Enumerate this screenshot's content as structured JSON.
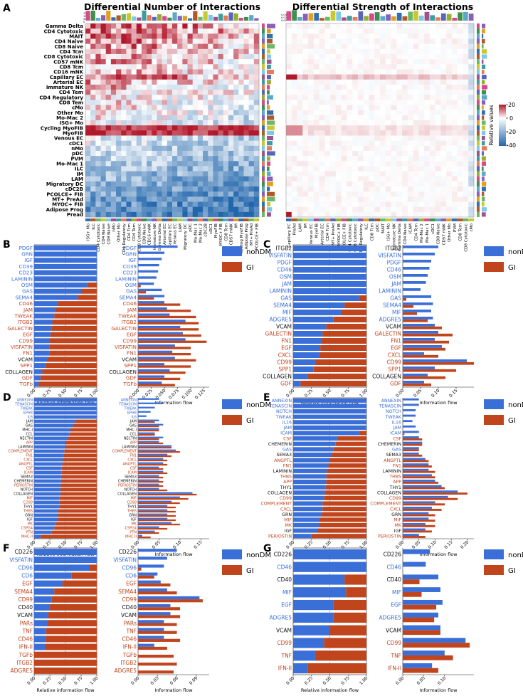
{
  "panel_letters": [
    "A",
    "B",
    "C",
    "D",
    "E",
    "F",
    "G"
  ],
  "heatmap": {
    "title_left": "Differential Number of Interactions",
    "title_right": "Differential Strength of Interactions",
    "small_scale_labels_left": [
      "150",
      "100",
      "50",
      "0"
    ],
    "small_scale_labels_right": [
      "0.04",
      "0.02",
      "0.00"
    ],
    "colorbar_ticks": [
      "20",
      "0",
      "-20",
      "-40"
    ],
    "colorbar_label": "Relative values",
    "colors": {
      "pos": "#b2182b",
      "neg": "#2166ac",
      "mid": "#ffffff"
    }
  },
  "chart_data": [
    {
      "type": "heatmap",
      "title": "Differential Number of Interactions",
      "rows": [
        "Gamma Delta",
        "CD4 Cytotoxic",
        "MAIT",
        "CD4 Naive",
        "CD8 Naive",
        "CD4 Tcm",
        "CD8 Cytotoxic",
        "CD57 mNK",
        "CD8 Tcm",
        "CD16 mNK",
        "Capillary EC",
        "Arterial EC",
        "Immature NK",
        "CD4 Tem",
        "CD4 Regulatory",
        "CD8 Tem",
        "cMo",
        "Other Mo",
        "Mo-Mac 2",
        "ISG+ Mo",
        "Cycling MyoFIB",
        "MyoFIB",
        "Venous EC",
        "cDC1",
        "nMo",
        "pDC",
        "PVM",
        "Mo-Mac 1",
        "ILC",
        "IM",
        "LAM",
        "Migratory DC",
        "cDC2B",
        "PCOLCE+ FIB",
        "MT+ PreAd",
        "MYOC+ FIB",
        "Adipose Prog",
        "Pread"
      ],
      "columns": [
        "ISG+ Mo",
        "ILC",
        "CD4 Cytotoxic",
        "CD4 Naive",
        "CD8 Naive",
        "nMo",
        "Other Mo",
        "CD4 Regulatory",
        "CD4 Tcm",
        "CD4 Tem",
        "CD8 Cytotoxic",
        "CD8 Naive",
        "CD16 mNK",
        "Immature NK",
        "Gamma Delta",
        "Arterial EC",
        "Capillary EC",
        "Venous EC",
        "LAM",
        "Migratory DC",
        "pDC",
        "Mo-Mac 1",
        "Mo-Mac 2",
        "cDC2B",
        "cDC1",
        "MyoFIB",
        "MYOC+ FIB",
        "CD8 Tem",
        "CD57 mNK",
        "IM",
        "Cycling MyoFIB",
        "Adipose Prog",
        "MT+ PreAd",
        "PCOLCE+ FIB"
      ],
      "color_range": [
        -40,
        20
      ],
      "colorbar_label": "Relative values"
    },
    {
      "type": "heatmap",
      "title": "Differential Strength of Interactions",
      "rows": [
        "Gamma Delta",
        "CD4 Cytotoxic",
        "MAIT",
        "CD4 Naive",
        "CD8 Naive",
        "CD4 Tcm",
        "CD8 Cytotoxic",
        "CD57 mNK",
        "CD8 Tcm",
        "CD16 mNK",
        "Capillary EC",
        "Arterial EC",
        "Immature NK",
        "CD4 Tem",
        "CD4 Regulatory",
        "CD8 Tem",
        "cMo",
        "Other Mo",
        "Mo-Mac 2",
        "ISG+ Mo",
        "Cycling MyoFIB",
        "MyoFIB",
        "Venous EC",
        "cDC1",
        "nMo",
        "pDC",
        "PVM",
        "Mo-Mac 1",
        "ILC",
        "IM",
        "LAM",
        "Migratory DC",
        "cDC2B",
        "PCOLCE+ FIB",
        "MT+ PreAd",
        "MYOC+ FIB",
        "Adipose Prog",
        "Pread"
      ],
      "columns": [
        "Capillary EC",
        "PreAd",
        "LAM",
        "IM",
        "Venous EC",
        "MyoFIB",
        "Arterial EC",
        "CD4 Tcm",
        "MT+ PreAd",
        "MYOC+ FIB",
        "PCOLCE+ FIB",
        "CD4 Cytotoxic",
        "CD8 Cytotoxic",
        "CD4 Regulatory",
        "ILC",
        "CD8 Tcm",
        "pDC",
        "MAIT",
        "ISG+ Mo",
        "Immature NK",
        "Gamma Delta",
        "CD4 Naive",
        "ICAM",
        "CD4 Tem",
        "Mo-Mac 2",
        "Mo-Mac 1",
        "cDC1",
        "CD8 Naive",
        "CD57 mNK",
        "Other Mo",
        "PVM",
        "CD8 Tem",
        "CD8 Cytotoxic",
        "cMo"
      ],
      "color_range": [
        -40,
        20
      ],
      "colorbar_label": "Relative values"
    },
    {
      "panel": "B",
      "type": "bar",
      "categories": [
        "PDGF",
        "GRN",
        "IGF",
        "CD39",
        "CD23",
        "LAMININ",
        "OSM",
        "GAS",
        "SEMA4",
        "CD46",
        "JAM",
        "TWEAK",
        "ITGB2",
        "GALECTIN",
        "EGF",
        "CD99",
        "VISFATIN",
        "FN1",
        "VCAM",
        "SPP1",
        "COLLAGEN",
        "GDF",
        "TGFb"
      ],
      "label_groups": [
        "nonDM",
        "nonDM",
        "nonDM",
        "nonDM",
        "nonDM",
        "nonDM",
        "nonDM",
        "nonDM",
        "nonDM",
        "GI",
        "GI",
        "GI",
        "GI",
        "GI",
        "GI",
        "GI",
        "GI",
        "GI",
        "none",
        "GI",
        "none",
        "GI",
        "GI"
      ],
      "relative_gi": [
        0,
        0,
        0,
        0,
        0,
        0,
        0.15,
        0.25,
        0.3,
        0.62,
        0.66,
        0.68,
        0.71,
        0.72,
        0.74,
        0.75,
        0.76,
        0.76,
        0.79,
        0.82,
        0.87,
        0.9,
        0.93
      ],
      "abs_nondm": [
        0.075,
        0.05,
        0.045,
        0.04,
        0.038,
        0.035,
        0.03,
        0.045,
        0.05,
        0.05,
        0.055,
        0.06,
        0.09,
        0.08,
        0.085,
        0.09,
        0.07,
        0.065,
        0.07,
        0.05,
        0.06,
        0.05,
        0.045
      ],
      "abs_gi": [
        0,
        0,
        0,
        0,
        0,
        0,
        0.005,
        0.015,
        0.03,
        0.08,
        0.1,
        0.11,
        0.115,
        0.115,
        0.12,
        0.13,
        0.1,
        0.1,
        0.11,
        0.1,
        0.09,
        0.08,
        0.07
      ],
      "xticks_rel": [
        "0.00",
        "0.25",
        "0.50",
        "0.75",
        "1.00"
      ],
      "xticks_abs": [
        "0.000",
        "0.025",
        "0.050",
        "0.075",
        "0.100",
        "0.125"
      ],
      "xmax_abs": 0.135,
      "xlabel_rel": "Relative information flow",
      "xlabel_abs": "Information flow",
      "legend": [
        "nonDM",
        "GI"
      ]
    },
    {
      "panel": "C",
      "type": "bar",
      "categories": [
        "ITGB2",
        "VISFATIN",
        "PDGF",
        "CD46",
        "OSM",
        "JAM",
        "LAMININ",
        "GAS",
        "SEMA4",
        "MIF",
        "ADGRE5",
        "VCAM",
        "GALECTIN",
        "FN1",
        "EGF",
        "CXCL",
        "CD99",
        "SPP1",
        "COLLAGEN",
        "GDF"
      ],
      "label_groups": [
        "none",
        "nonDM",
        "nonDM",
        "nonDM",
        "nonDM",
        "nonDM",
        "nonDM",
        "nonDM",
        "nonDM",
        "nonDM",
        "nonDM",
        "none",
        "GI",
        "GI",
        "GI",
        "GI",
        "GI",
        "GI",
        "none",
        "GI"
      ],
      "relative_gi": [
        0,
        0,
        0,
        0,
        0,
        0,
        0,
        0.1,
        0.3,
        0.35,
        0.45,
        0.55,
        0.6,
        0.62,
        0.63,
        0.64,
        0.7,
        0.72,
        0.8,
        0.9
      ],
      "abs_nondm": [
        0.1,
        0.09,
        0.08,
        0.075,
        0.07,
        0.065,
        0.05,
        0.08,
        0.085,
        0.08,
        0.085,
        0.09,
        0.1,
        0.09,
        0.11,
        0.06,
        0.18,
        0.09,
        0.07,
        0.06
      ],
      "abs_gi": [
        0,
        0,
        0,
        0,
        0,
        0,
        0,
        0.01,
        0.03,
        0.04,
        0.07,
        0.11,
        0.14,
        0.13,
        0.12,
        0.1,
        0.2,
        0.15,
        0.12,
        0.08
      ],
      "xticks_rel": [
        "0.00",
        "0.25",
        "0.50",
        "0.75",
        "1.00"
      ],
      "xticks_abs": [
        "0.00",
        "0.05",
        "0.10",
        "0.15"
      ],
      "xmax_abs": 0.2,
      "xlabel_rel": "Relative information flow",
      "xlabel_abs": "Information flow",
      "legend": [
        "nonDM",
        "GI"
      ]
    },
    {
      "panel": "D",
      "type": "bar",
      "categories": [
        "ANNEXIN",
        "TENASCIN",
        "TWEAK",
        "EPHB",
        "IL6",
        "JAM",
        "GAS",
        "MHC-I",
        "CCL",
        "NECTIN",
        "APP",
        "LAMININ",
        "COMPLEMENT",
        "FN1",
        "CXCL",
        "ANGPTL",
        "CSF",
        "ICAM",
        "SEMA3",
        "CHEMERIN",
        "PERIOSTIN",
        "NOTCH",
        "COLLAGEN",
        "MIF",
        "CD99",
        "THY1",
        "THBS",
        "GRN",
        "IGF",
        "MK",
        "CSPG4",
        "PTN",
        "MHC-II"
      ],
      "label_groups": [
        "nonDM",
        "nonDM",
        "nonDM",
        "nonDM",
        "nonDM",
        "none",
        "none",
        "none",
        "none",
        "none",
        "GI",
        "none",
        "GI",
        "GI",
        "GI",
        "GI",
        "GI",
        "GI",
        "none",
        "none",
        "GI",
        "none",
        "none",
        "GI",
        "GI",
        "none",
        "GI",
        "none",
        "none",
        "GI",
        "GI",
        "GI",
        "GI"
      ],
      "relative_gi": [
        0,
        0,
        0,
        0,
        0,
        0.35,
        0.38,
        0.42,
        0.44,
        0.46,
        0.5,
        0.5,
        0.52,
        0.53,
        0.54,
        0.55,
        0.56,
        0.56,
        0.57,
        0.57,
        0.58,
        0.58,
        0.58,
        0.6,
        0.6,
        0.6,
        0.62,
        0.62,
        0.63,
        0.65,
        0.68,
        0.72,
        0.9
      ],
      "abs_nondm": [
        0.05,
        0.06,
        0.04,
        0.03,
        0.02,
        0.05,
        0.06,
        0.05,
        0.04,
        0.06,
        0.05,
        0.08,
        0.09,
        0.07,
        0.06,
        0.06,
        0.05,
        0.06,
        0.05,
        0.05,
        0.05,
        0.05,
        0.13,
        0.1,
        0.08,
        0.07,
        0.07,
        0.07,
        0.07,
        0.08,
        0.05,
        0.04,
        0.01
      ],
      "abs_gi": [
        0,
        0,
        0,
        0,
        0,
        0.04,
        0.05,
        0.05,
        0.04,
        0.05,
        0.06,
        0.08,
        0.1,
        0.08,
        0.07,
        0.07,
        0.06,
        0.07,
        0.06,
        0.06,
        0.06,
        0.07,
        0.14,
        0.12,
        0.1,
        0.09,
        0.09,
        0.09,
        0.09,
        0.1,
        0.07,
        0.05,
        0.03
      ],
      "xticks_rel": [
        "0.00",
        "0.25",
        "0.50",
        "0.75",
        "1.00"
      ],
      "xticks_abs": [
        "0.00",
        "0.05",
        "0.10",
        "0.15"
      ],
      "xmax_abs": 0.17,
      "xlabel_rel": "Relative information flow",
      "xlabel_abs": "Information flow",
      "legend": [
        "nonDM",
        "GI"
      ]
    },
    {
      "panel": "E",
      "type": "bar",
      "categories": [
        "ANNEXIN",
        "TENASCIN",
        "NOTCH",
        "TWEAK",
        "IL16",
        "JAM",
        "ICAM",
        "CSF",
        "CHEMERIN",
        "GAS",
        "SEMA3",
        "ANGPTL",
        "FN1",
        "LAMININ",
        "THBS",
        "APP",
        "THY1",
        "COLLAGEN",
        "CD99",
        "COMPLEMENT",
        "CXCL",
        "GRN",
        "MIF",
        "MK",
        "IGF",
        "PERIOSTIN"
      ],
      "label_groups": [
        "nonDM",
        "nonDM",
        "nonDM",
        "nonDM",
        "nonDM",
        "nonDM",
        "nonDM",
        "GI",
        "none",
        "nonDM",
        "none",
        "GI",
        "GI",
        "none",
        "GI",
        "GI",
        "none",
        "none",
        "GI",
        "GI",
        "GI",
        "none",
        "GI",
        "GI",
        "none",
        "GI"
      ],
      "relative_gi": [
        0,
        0,
        0,
        0,
        0,
        0,
        0.1,
        0.4,
        0.42,
        0.45,
        0.48,
        0.5,
        0.52,
        0.54,
        0.55,
        0.55,
        0.56,
        0.57,
        0.58,
        0.6,
        0.6,
        0.62,
        0.65,
        0.65,
        0.67,
        0.75
      ],
      "abs_nondm": [
        0.05,
        0.05,
        0.04,
        0.04,
        0.03,
        0.04,
        0.05,
        0.05,
        0.06,
        0.05,
        0.05,
        0.07,
        0.08,
        0.08,
        0.09,
        0.1,
        0.12,
        0.17,
        0.14,
        0.1,
        0.09,
        0.08,
        0.08,
        0.07,
        0.07,
        0.05
      ],
      "abs_gi": [
        0,
        0,
        0,
        0,
        0,
        0,
        0.005,
        0.06,
        0.06,
        0.05,
        0.06,
        0.08,
        0.09,
        0.1,
        0.1,
        0.11,
        0.13,
        0.2,
        0.17,
        0.13,
        0.12,
        0.1,
        0.1,
        0.1,
        0.09,
        0.07
      ],
      "xticks_rel": [
        "0.00",
        "0.25",
        "0.50",
        "0.75",
        "1.00"
      ],
      "xticks_abs": [
        "0.00",
        "0.05",
        "0.10",
        "0.15",
        "0.20"
      ],
      "xmax_abs": 0.22,
      "xlabel_rel": "Relative information flow",
      "xlabel_abs": "Information flow",
      "legend": [
        "nonDM",
        "GI"
      ]
    },
    {
      "panel": "F",
      "type": "bar",
      "categories": [
        "CD226",
        "VISFATIN",
        "CD96",
        "CD6",
        "EGF",
        "SEMA4",
        "CD99",
        "CD40",
        "VCAM",
        "PARs",
        "TNF",
        "CD46",
        "IFN-II",
        "TGFb",
        "ITGB2",
        "ADGRE5"
      ],
      "label_groups": [
        "none",
        "nonDM",
        "nonDM",
        "nonDM",
        "GI",
        "GI",
        "GI",
        "none",
        "none",
        "GI",
        "GI",
        "GI",
        "GI",
        "GI",
        "GI",
        "GI"
      ],
      "relative_gi": [
        0,
        0,
        0.12,
        0.4,
        0.55,
        0.68,
        0.72,
        0.76,
        0.78,
        0.79,
        0.81,
        0.82,
        0.83,
        1,
        1,
        1
      ],
      "abs_nondm": [
        0.06,
        0.045,
        0.04,
        0.03,
        0.035,
        0.045,
        0.095,
        0.05,
        0.05,
        0.04,
        0.04,
        0.04,
        0.025,
        0,
        0,
        0
      ],
      "abs_gi": [
        0,
        0,
        0.005,
        0.025,
        0.05,
        0.06,
        0.1,
        0.065,
        0.065,
        0.06,
        0.06,
        0.065,
        0.045,
        0.055,
        0.06,
        0.055
      ],
      "xticks_rel": [
        "0.00",
        "0.25",
        "0.50",
        "0.75",
        "1.00"
      ],
      "xticks_abs": [
        "0.00",
        "0.03",
        "0.06",
        "0.09"
      ],
      "xmax_abs": 0.11,
      "xlabel_rel": "Relative information flow",
      "xlabel_abs": "Information flow",
      "legend": [
        "nonDM",
        "GI"
      ]
    },
    {
      "panel": "G",
      "type": "bar",
      "categories": [
        "CD226",
        "CD46",
        "CD40",
        "MIF",
        "EGF",
        "ADGRE5",
        "VCAM",
        "CD99",
        "TNF",
        "IFN-II"
      ],
      "label_groups": [
        "none",
        "nonDM",
        "none",
        "nonDM",
        "nonDM",
        "nonDM",
        "none",
        "GI",
        "GI",
        "GI"
      ],
      "relative_gi": [
        0,
        0,
        0.3,
        0.28,
        0.45,
        0.45,
        0.5,
        0.58,
        0.7,
        0.8
      ],
      "abs_nondm": [
        0.065,
        0.055,
        0.085,
        0.09,
        0.095,
        0.085,
        0.09,
        0.15,
        0.1,
        0.07
      ],
      "abs_gi": [
        0,
        0,
        0.04,
        0.045,
        0.08,
        0.075,
        0.09,
        0.16,
        0.12,
        0.085
      ],
      "xticks_rel": [
        "0.00",
        "0.25",
        "0.50",
        "0.75",
        "1.00"
      ],
      "xticks_abs": [
        "0.00",
        "0.05",
        "0.10"
      ],
      "xmax_abs": 0.17,
      "xlabel_rel": "Relative information flow",
      "xlabel_abs": "Information flow",
      "legend": [
        "nonDM",
        "GI"
      ]
    }
  ],
  "colors": {
    "nonDM": "#3b6fd8",
    "GI": "#c0441c",
    "label_none": "#111111"
  }
}
